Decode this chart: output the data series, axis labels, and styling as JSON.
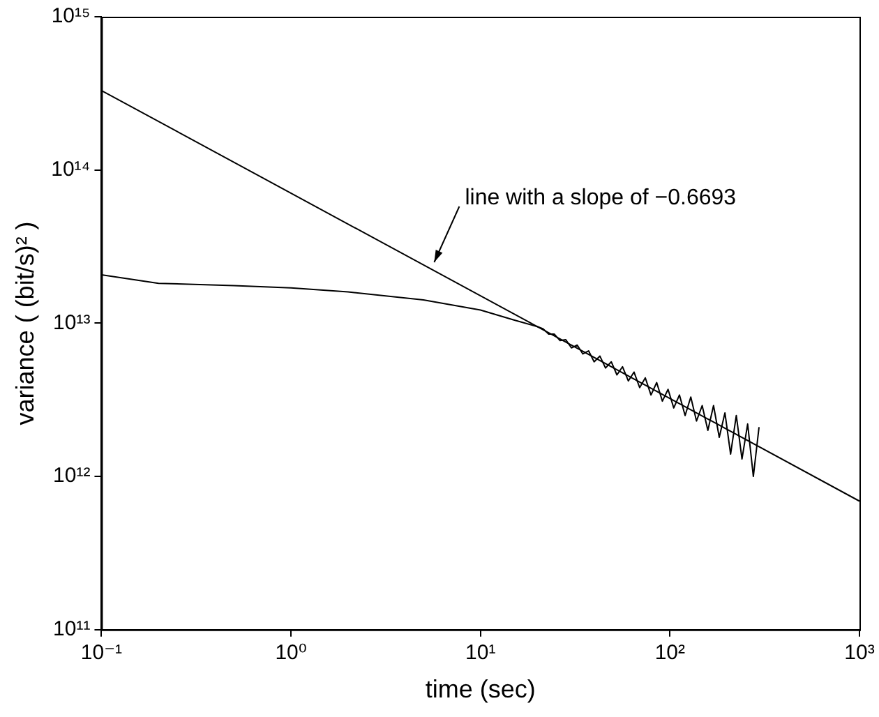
{
  "chart_data": {
    "type": "line",
    "xlabel": "time (sec)",
    "ylabel": "variance ( (bit/s)² )",
    "log": "xy",
    "grid": false,
    "legend": false,
    "marker": "none",
    "line_style": "solid",
    "xlim": [
      0.1,
      1000
    ],
    "ylim": [
      100000000000.0,
      1000000000000000.0
    ],
    "xticks": [
      {
        "value": 0.1,
        "label": "10⁻¹"
      },
      {
        "value": 1,
        "label": "10⁰"
      },
      {
        "value": 10,
        "label": "10¹"
      },
      {
        "value": 100,
        "label": "10²"
      },
      {
        "value": 1000,
        "label": "10³"
      }
    ],
    "yticks": [
      {
        "value": 100000000000.0,
        "label": "10¹¹"
      },
      {
        "value": 1000000000000.0,
        "label": "10¹²"
      },
      {
        "value": 10000000000000.0,
        "label": "10¹³"
      },
      {
        "value": 100000000000000.0,
        "label": "10¹⁴"
      },
      {
        "value": 1000000000000000.0,
        "label": "10¹⁵"
      }
    ],
    "annotations": [
      {
        "text": "line with a slope of −0.6693",
        "x": 5.7,
        "y": 25000000000000.0
      }
    ],
    "series": [
      {
        "color": "#000000",
        "x": [
          0.1,
          0.2,
          0.5,
          1,
          2,
          5,
          10,
          15,
          19.95,
          21.4,
          22.9,
          24.5,
          26.3,
          28.2,
          30.2,
          32.4,
          34.7,
          37.2,
          39.8,
          42.7,
          45.7,
          49,
          52.5,
          56.2,
          60.3,
          64.6,
          69.2,
          74.1,
          79.4,
          85.1,
          91.2,
          97.7,
          104.7,
          112.2,
          120.2,
          128.8,
          138,
          147.9,
          158.5,
          169.8,
          182,
          195,
          208.9,
          223.9,
          239.9,
          257,
          275.4,
          295.1
        ],
        "values": [
          20700000000000.0,
          18200000000000.0,
          17600000000000.0,
          17000000000000.0,
          16000000000000.0,
          14200000000000.0,
          12200000000000.0,
          10500000000000.0,
          9500000000000.0,
          9200000000000.0,
          8500000000000.0,
          8500000000000.0,
          7700000000000.0,
          7800000000000.0,
          6900000000000.0,
          7200000000000.0,
          6300000000000.0,
          6600000000000.0,
          5600000000000.0,
          6100000000000.0,
          5100000000000.0,
          5600000000000.0,
          4600000000000.0,
          5200000000000.0,
          4200000000000.0,
          4800000000000.0,
          3800000000000.0,
          4400000000000.0,
          3400000000000.0,
          4100000000000.0,
          3100000000000.0,
          3700000000000.0,
          2800000000000.0,
          3400000000000.0,
          2500000000000.0,
          3300000000000.0,
          2300000000000.0,
          2900000000000.0,
          2000000000000.0,
          2900000000000.0,
          1800000000000.0,
          2600000000000.0,
          1400000000000.0,
          2500000000000.0,
          1300000000000.0,
          2200000000000.0,
          1000000000000.0,
          2100000000000.0
        ]
      },
      {
        "type": "line",
        "color": "#000000",
        "x": [
          0.1,
          1000
        ],
        "values": [
          330000000000000.0,
          690000000000.0
        ]
      }
    ]
  }
}
